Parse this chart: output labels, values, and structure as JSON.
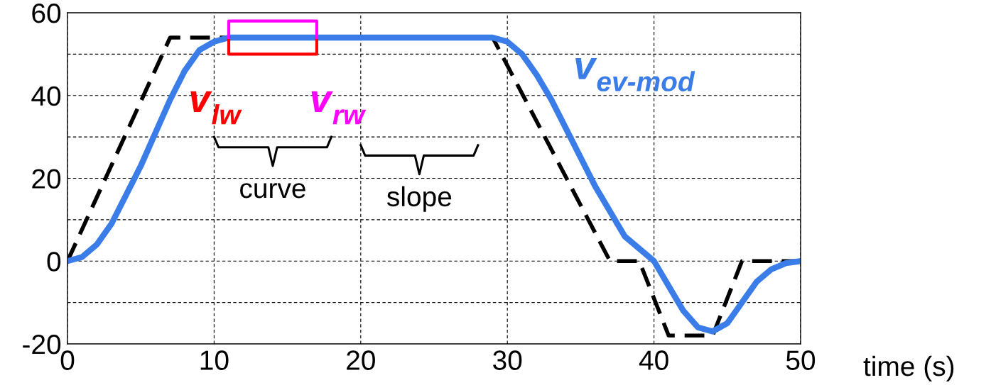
{
  "chart_data": {
    "type": "line",
    "xlabel": "time (s)",
    "xlim": [
      0,
      50
    ],
    "ylim": [
      -20,
      60
    ],
    "xticks": [
      0,
      10,
      20,
      30,
      40,
      50
    ],
    "yticks": [
      -20,
      0,
      20,
      40,
      60
    ],
    "grid": true,
    "legend": false,
    "series": [
      {
        "line_style": "dashed",
        "color": "#000000",
        "x": [
          0,
          7,
          29,
          37,
          39,
          41,
          44,
          46,
          50
        ],
        "values": [
          0,
          54,
          54,
          0,
          0,
          -18,
          -18,
          0,
          0
        ]
      },
      {
        "line_style": "solid",
        "name": "v$_{lw}$",
        "color": "#ff0000",
        "x": [
          11,
          11,
          17,
          17
        ],
        "values": [
          54,
          50,
          50,
          54
        ]
      },
      {
        "line_style": "solid",
        "name": "v$_{rw}$",
        "color": "#ff00ff",
        "x": [
          11,
          11,
          17,
          17
        ],
        "values": [
          54,
          58,
          58,
          54
        ]
      },
      {
        "line_style": "solid",
        "name": "v$_{ev-mod}$",
        "color": "#3a7de8",
        "x": [
          0,
          1,
          2,
          3,
          4,
          5,
          6,
          7,
          8,
          9,
          10,
          11,
          29,
          30,
          31,
          32,
          33,
          34,
          35,
          36,
          37,
          38,
          39,
          40,
          41,
          42,
          43,
          44,
          45,
          46,
          47,
          48,
          49,
          50
        ],
        "values": [
          0,
          1,
          4,
          9,
          16,
          23,
          31,
          39,
          46,
          51,
          53,
          54,
          54,
          53,
          50,
          45,
          39,
          32,
          25,
          18,
          12,
          6,
          3,
          0,
          -6,
          -12,
          -16,
          -17,
          -15,
          -10,
          -5,
          -2,
          -0.5,
          0
        ]
      }
    ],
    "annotations": [
      "curve",
      "slope"
    ]
  }
}
